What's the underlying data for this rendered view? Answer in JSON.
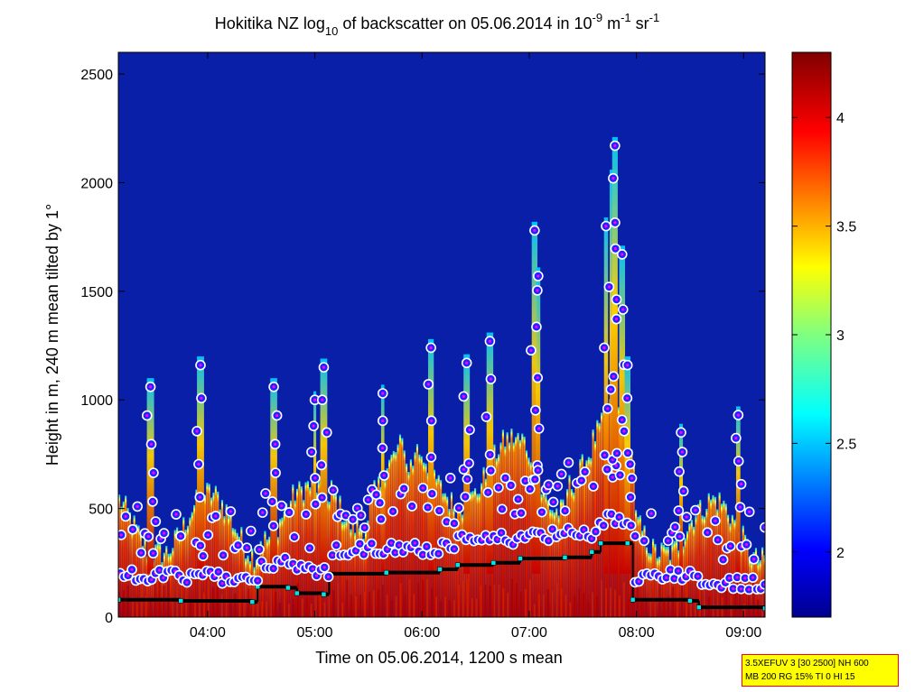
{
  "figure": {
    "title_prefix": "Hokitika NZ log",
    "title_sub": "10",
    "title_mid": " of backscatter on 05.06.2014 in 10",
    "title_exp1": "-9",
    "title_unit1": " m",
    "title_exp2": "-1",
    "title_unit2": " sr",
    "title_exp3": "-1"
  },
  "info_box": {
    "line1": "3.5XEFUV 3 [30 2500] NH 600",
    "line2": "MB 200 RG 15% TI 0 HI 15"
  },
  "chart_data": {
    "type": "heatmap",
    "title": "Hokitika NZ log10 of backscatter on 05.06.2014 in 10^-9 m^-1 sr^-1",
    "xlabel": "Time on 05.06.2014, 1200 s mean",
    "ylabel": "Height in m, 240 m mean tilted by 1°",
    "xlim": [
      "03:10",
      "09:12"
    ],
    "ylim": [
      0,
      2600
    ],
    "x_ticks": [
      "04:00",
      "05:00",
      "06:00",
      "07:00",
      "08:00",
      "09:00"
    ],
    "y_ticks": [
      0,
      500,
      1000,
      1500,
      2000,
      2500
    ],
    "colorbar": {
      "range": [
        1.7,
        4.3
      ],
      "ticks": [
        2,
        2.5,
        3,
        3.5,
        4
      ],
      "tick_labels": [
        "2",
        "2.5",
        "3",
        "3.5",
        "4"
      ],
      "colormap": "jet"
    },
    "colors": {
      "background": "#0a1fa8",
      "marker_fill": "#2323ff",
      "marker_edge": "#ffffff",
      "marker_dot": "#ff00ff",
      "layer_line": "#000000",
      "layer_marker": "#00e5e5"
    },
    "boundary_layer_height": [
      [
        "03:10",
        80
      ],
      [
        "03:45",
        75
      ],
      [
        "04:25",
        70
      ],
      [
        "04:28",
        140
      ],
      [
        "04:45",
        135
      ],
      [
        "04:50",
        110
      ],
      [
        "05:05",
        105
      ],
      [
        "05:08",
        200
      ],
      [
        "05:40",
        205
      ],
      [
        "06:10",
        220
      ],
      [
        "06:20",
        240
      ],
      [
        "06:40",
        250
      ],
      [
        "06:55",
        270
      ],
      [
        "07:20",
        275
      ],
      [
        "07:35",
        300
      ],
      [
        "07:40",
        340
      ],
      [
        "07:55",
        340
      ],
      [
        "07:58",
        80
      ],
      [
        "08:30",
        75
      ],
      [
        "08:35",
        45
      ],
      [
        "09:12",
        40
      ]
    ],
    "tall_plumes": [
      [
        "03:28",
        1060
      ],
      [
        "03:56",
        1160
      ],
      [
        "04:37",
        1060
      ],
      [
        "05:00",
        1000
      ],
      [
        "05:05",
        1150
      ],
      [
        "05:38",
        1030
      ],
      [
        "06:05",
        1240
      ],
      [
        "06:25",
        1170
      ],
      [
        "06:38",
        1270
      ],
      [
        "07:03",
        1780
      ],
      [
        "07:05",
        1570
      ],
      [
        "07:43",
        1800
      ],
      [
        "07:47",
        2020
      ],
      [
        "07:48",
        2170
      ],
      [
        "07:52",
        1670
      ],
      [
        "07:55",
        1160
      ],
      [
        "08:25",
        850
      ],
      [
        "08:57",
        930
      ]
    ]
  }
}
